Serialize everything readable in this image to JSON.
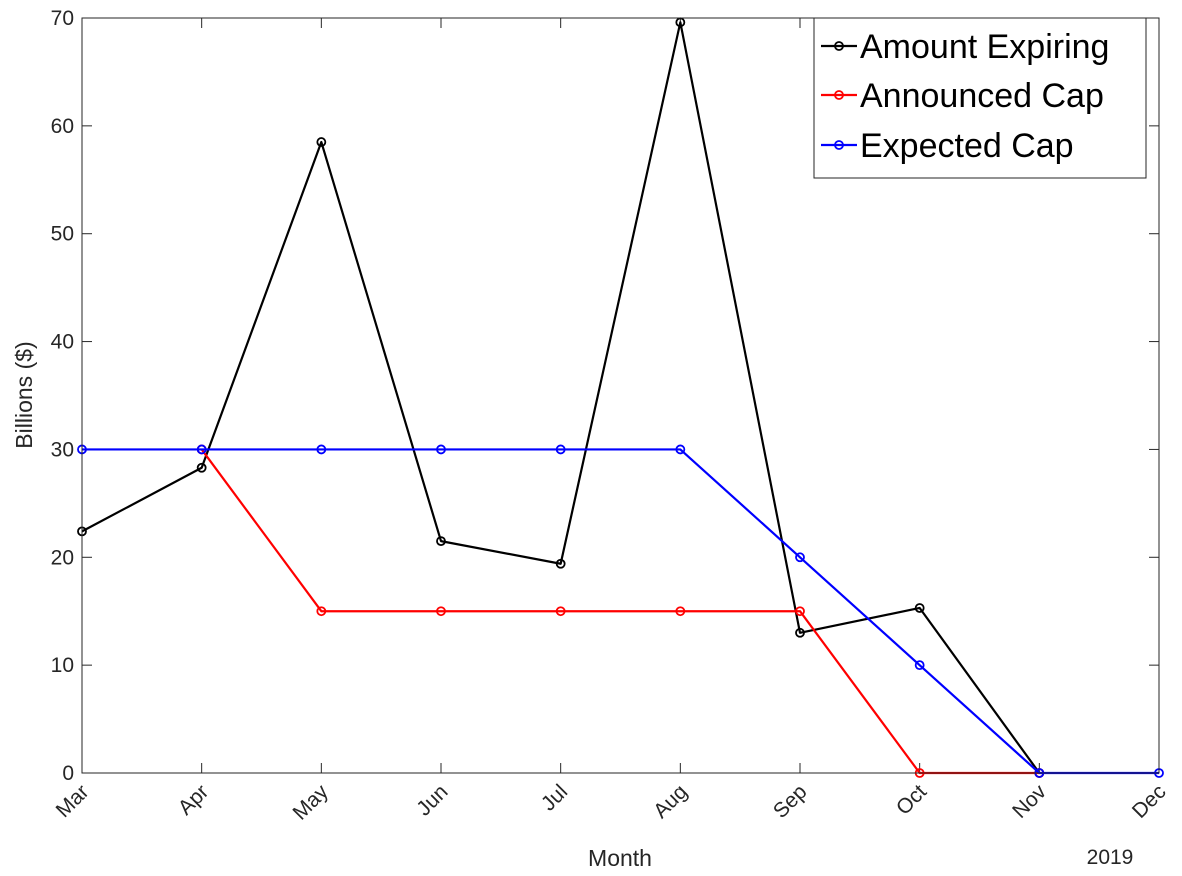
{
  "chart_data": {
    "type": "line",
    "categories": [
      "Mar",
      "Apr",
      "May",
      "Jun",
      "Jul",
      "Aug",
      "Sep",
      "Oct",
      "Nov",
      "Dec"
    ],
    "xlabel": "Month",
    "ylabel": "Billions ($)",
    "year_label": "2019",
    "ylim": [
      0,
      70
    ],
    "yticks": [
      0,
      10,
      20,
      30,
      40,
      50,
      60,
      70
    ],
    "grid": false,
    "legend_position": "top-right",
    "series": [
      {
        "name": "Amount Expiring",
        "color": "#000000",
        "values": [
          22.4,
          28.3,
          58.5,
          21.5,
          19.4,
          69.6,
          13.0,
          15.3,
          0,
          null
        ]
      },
      {
        "name": "Announced Cap",
        "color": "#ff0000",
        "values": [
          null,
          30,
          15,
          15,
          15,
          15,
          15,
          0,
          0,
          null
        ]
      },
      {
        "name": "Expected Cap",
        "color": "#0000ff",
        "values": [
          30,
          30,
          30,
          30,
          30,
          30,
          20,
          10,
          0,
          0
        ]
      }
    ]
  }
}
